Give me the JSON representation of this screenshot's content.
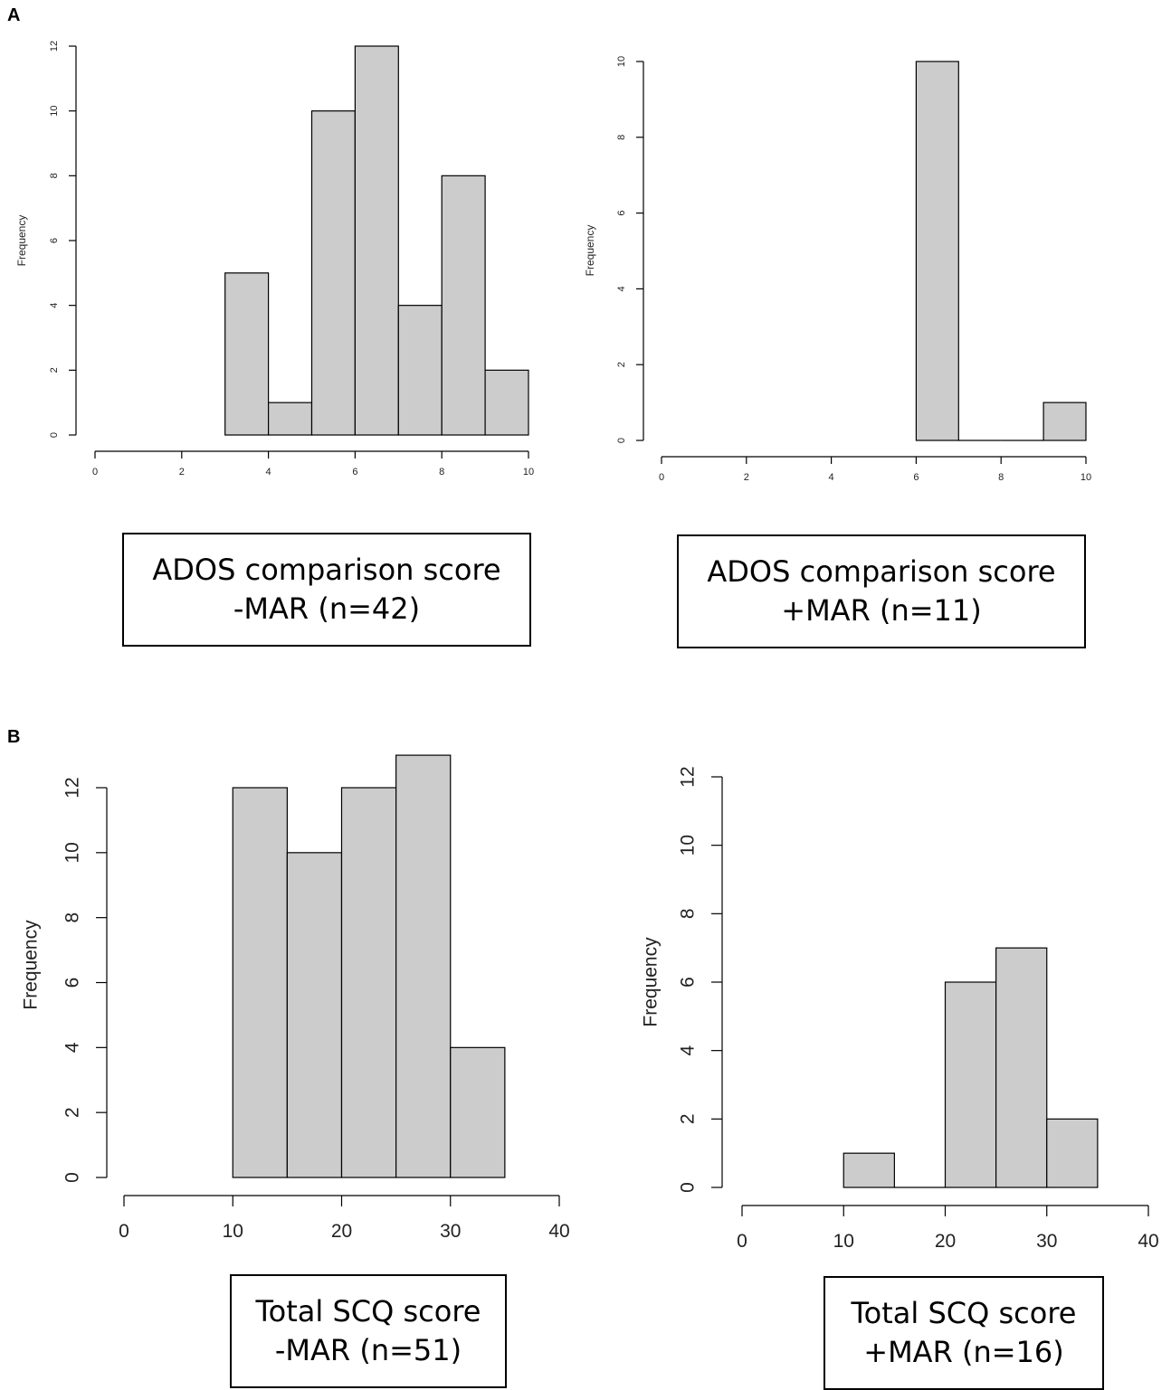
{
  "panels": [
    {
      "letter": "A"
    },
    {
      "letter": "B"
    }
  ],
  "captions": [
    {
      "line1": "ADOS comparison score",
      "line2": "-MAR (n=42)"
    },
    {
      "line1": "ADOS comparison score",
      "line2": "+MAR (n=11)"
    },
    {
      "line1": "Total SCQ score",
      "line2": "-MAR (n=51)"
    },
    {
      "line1": "Total SCQ score",
      "line2": "+MAR (n=16)"
    }
  ],
  "chart_data": [
    {
      "type": "bar",
      "bins": [
        [
          3,
          4
        ],
        [
          4,
          5
        ],
        [
          5,
          6
        ],
        [
          6,
          7
        ],
        [
          7,
          8
        ],
        [
          8,
          9
        ],
        [
          9,
          10
        ]
      ],
      "values": [
        5,
        1,
        10,
        12,
        4,
        8,
        2
      ],
      "xlim": [
        0,
        10
      ],
      "xticks": [
        0,
        2,
        4,
        6,
        8,
        10
      ],
      "ylim": [
        0,
        12
      ],
      "yticks": [
        0,
        2,
        4,
        6,
        8,
        10,
        12
      ],
      "ylabel": "Frequency",
      "bar_color": "#cccccc"
    },
    {
      "type": "bar",
      "bins": [
        [
          6,
          7
        ],
        [
          7,
          8
        ],
        [
          8,
          9
        ],
        [
          9,
          10
        ]
      ],
      "values": [
        10,
        0,
        0,
        1
      ],
      "xlim": [
        0,
        10
      ],
      "xticks": [
        0,
        2,
        4,
        6,
        8,
        10
      ],
      "ylim": [
        0,
        10
      ],
      "yticks": [
        0,
        2,
        4,
        6,
        8,
        10
      ],
      "ylabel": "Frequency",
      "bar_color": "#cccccc"
    },
    {
      "type": "bar",
      "bins": [
        [
          10,
          15
        ],
        [
          15,
          20
        ],
        [
          20,
          25
        ],
        [
          25,
          30
        ],
        [
          30,
          35
        ]
      ],
      "values": [
        12,
        10,
        12,
        13,
        4
      ],
      "xlim": [
        0,
        40
      ],
      "xticks": [
        0,
        10,
        20,
        30,
        40
      ],
      "ylim": [
        0,
        12
      ],
      "yticks": [
        0,
        2,
        4,
        6,
        8,
        10,
        12
      ],
      "ylabel": "Frequency",
      "bar_color": "#cccccc"
    },
    {
      "type": "bar",
      "bins": [
        [
          10,
          15
        ],
        [
          15,
          20
        ],
        [
          20,
          25
        ],
        [
          25,
          30
        ],
        [
          30,
          35
        ]
      ],
      "values": [
        1,
        0,
        6,
        7,
        2
      ],
      "xlim": [
        0,
        40
      ],
      "xticks": [
        0,
        10,
        20,
        30,
        40
      ],
      "ylim": [
        0,
        12
      ],
      "yticks": [
        0,
        2,
        4,
        6,
        8,
        10,
        12
      ],
      "ylabel": "Frequency",
      "bar_color": "#cccccc"
    }
  ]
}
